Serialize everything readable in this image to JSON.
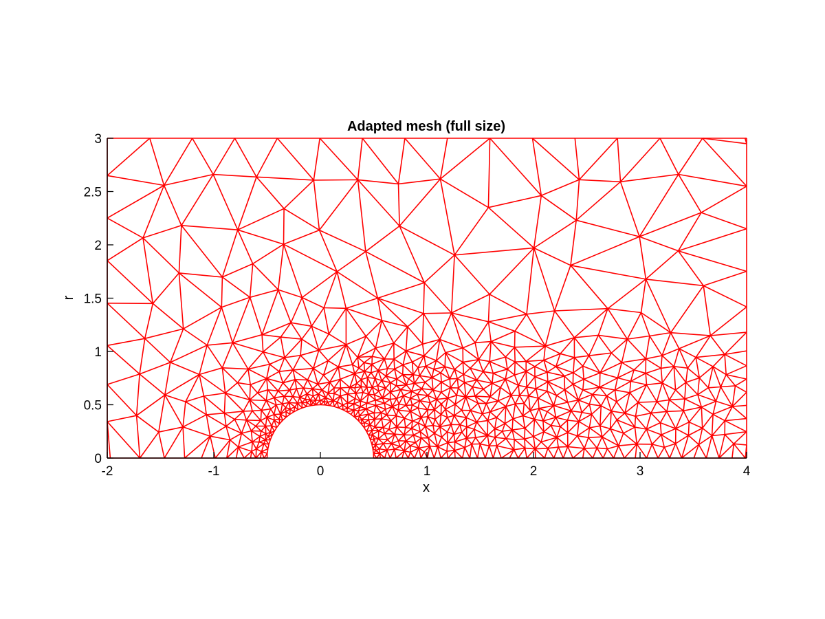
{
  "chart_data": {
    "type": "mesh",
    "title": "Adapted mesh (full size)",
    "xlabel": "x",
    "ylabel": "r",
    "xlim": [
      -2,
      4
    ],
    "ylim": [
      0,
      3
    ],
    "xticks": [
      -2,
      -1,
      0,
      1,
      2,
      3,
      4
    ],
    "yticks": [
      0,
      0.5,
      1,
      1.5,
      2,
      2.5,
      3
    ],
    "xtick_labels": [
      "-2",
      "-1",
      "0",
      "1",
      "2",
      "3",
      "4"
    ],
    "ytick_labels": [
      "0",
      "0.5",
      "1",
      "1.5",
      "2",
      "2.5",
      "3"
    ],
    "obstacle": {
      "shape": "half-disk",
      "center": [
        0,
        0
      ],
      "radius": 0.5
    },
    "mesh_color": "#ff0000",
    "axis_color": "#000000",
    "grid": false,
    "box": false
  }
}
